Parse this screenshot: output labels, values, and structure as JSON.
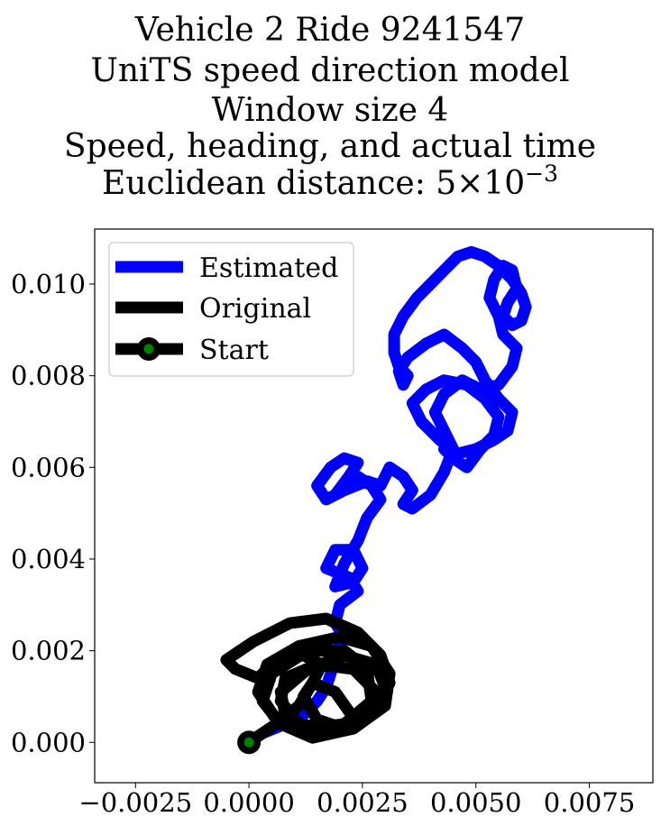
{
  "chart_data": {
    "type": "line",
    "title_lines": [
      "Vehicle 2 Ride 9241547",
      "UniTS speed direction model",
      "Window size 4",
      "Speed, heading, and actual time",
      "Euclidean distance: 5×10"
    ],
    "title_exponent": "−3",
    "xlim": [
      -0.0034,
      0.0089
    ],
    "ylim": [
      -0.00088,
      0.0112
    ],
    "x_ticks": [
      -0.0025,
      0.0,
      0.0025,
      0.005,
      0.0075
    ],
    "x_tick_labels": [
      "−0.0025",
      "0.0000",
      "0.0025",
      "0.0050",
      "0.0075"
    ],
    "y_ticks": [
      0.0,
      0.002,
      0.004,
      0.006,
      0.008,
      0.01
    ],
    "y_tick_labels": [
      "0.000",
      "0.002",
      "0.004",
      "0.006",
      "0.008",
      "0.010"
    ],
    "legend_position": "upper left",
    "legend": [
      "Estimated",
      "Original",
      "Start"
    ],
    "colors": {
      "estimated": "#0000ff",
      "original": "#000000",
      "start_fill": "#008000",
      "start_edge": "#000000"
    },
    "start": [
      0.0,
      0.0
    ],
    "series": [
      {
        "name": "Estimated",
        "x": [
          0.0,
          0.0003,
          0.0008,
          0.0012,
          0.0015,
          0.0017,
          0.0018,
          0.0019,
          0.0021,
          0.0019,
          0.002,
          0.0024,
          0.0022,
          0.0017,
          0.0019,
          0.0023,
          0.0025,
          0.0023,
          0.0019,
          0.0021,
          0.0024,
          0.0026,
          0.0029,
          0.0027,
          0.0024,
          0.0021,
          0.0019,
          0.0022,
          0.0024,
          0.0021,
          0.0018,
          0.0015,
          0.0017,
          0.0021,
          0.0026,
          0.0029,
          0.0031,
          0.0034,
          0.0036,
          0.0034,
          0.0036,
          0.004,
          0.0043,
          0.0045,
          0.0043,
          0.0041,
          0.0043,
          0.0047,
          0.0051,
          0.0055,
          0.0058,
          0.0059,
          0.0056,
          0.0055,
          0.0053,
          0.0054,
          0.0056,
          0.0058,
          0.0059,
          0.0057,
          0.0056,
          0.0058,
          0.006,
          0.0061,
          0.006,
          0.0058,
          0.0055,
          0.0052,
          0.0049,
          0.0046,
          0.0043,
          0.004,
          0.0037,
          0.0034,
          0.0032,
          0.0032,
          0.0033,
          0.0035,
          0.0034,
          0.0033,
          0.0035,
          0.0039,
          0.0043,
          0.0047,
          0.005,
          0.0052,
          0.0055,
          0.0058,
          0.0057,
          0.0054,
          0.005,
          0.0046,
          0.0042,
          0.0038,
          0.0036,
          0.0039,
          0.0043,
          0.0048,
          0.0052,
          0.0055,
          0.0054,
          0.0051,
          0.0048,
          0.0045,
          0.0043
        ],
        "y": [
          0.0,
          0.0002,
          0.0004,
          0.0006,
          0.0009,
          0.0012,
          0.0015,
          0.0019,
          0.0023,
          0.0026,
          0.003,
          0.0033,
          0.0036,
          0.0038,
          0.0042,
          0.0042,
          0.0038,
          0.0035,
          0.0034,
          0.0039,
          0.0044,
          0.0049,
          0.0053,
          0.0056,
          0.0058,
          0.0055,
          0.0054,
          0.0058,
          0.0061,
          0.0062,
          0.006,
          0.0056,
          0.0053,
          0.0055,
          0.0057,
          0.0056,
          0.006,
          0.0058,
          0.0055,
          0.0052,
          0.0051,
          0.0054,
          0.0059,
          0.0064,
          0.0068,
          0.0072,
          0.0076,
          0.0079,
          0.0077,
          0.0078,
          0.0082,
          0.0086,
          0.0089,
          0.0093,
          0.0097,
          0.0101,
          0.0104,
          0.0103,
          0.0099,
          0.0096,
          0.0093,
          0.0091,
          0.0092,
          0.0095,
          0.0098,
          0.0101,
          0.0104,
          0.0106,
          0.0107,
          0.0106,
          0.0103,
          0.01,
          0.0097,
          0.0093,
          0.0089,
          0.0085,
          0.0082,
          0.008,
          0.0078,
          0.0081,
          0.0084,
          0.0087,
          0.0089,
          0.0086,
          0.0083,
          0.0079,
          0.0075,
          0.0072,
          0.0068,
          0.0066,
          0.0064,
          0.0063,
          0.0066,
          0.007,
          0.0074,
          0.0077,
          0.0079,
          0.0078,
          0.0075,
          0.0071,
          0.0067,
          0.0064,
          0.006,
          0.0062,
          0.0064
        ]
      },
      {
        "name": "Original",
        "x": [
          0.0,
          0.0006,
          0.0011,
          0.0014,
          0.0016,
          0.0012,
          0.0006,
          0.0002,
          -0.0003,
          -0.0005,
          0.0001,
          0.0009,
          0.0017,
          0.0024,
          0.0029,
          0.0031,
          0.0028,
          0.0021,
          0.0013,
          0.0006,
          0.0002,
          0.0004,
          0.0011,
          0.002,
          0.0027,
          0.0031,
          0.003,
          0.0023,
          0.0014,
          0.0007,
          0.0003,
          0.0005,
          0.0013,
          0.0021,
          0.0026,
          0.0027,
          0.0021,
          0.0013,
          0.0008,
          0.0007,
          0.0013,
          0.0021,
          0.0028,
          0.003,
          0.0026,
          0.0018,
          0.0011,
          0.0007,
          0.0008,
          0.0015,
          0.0023,
          0.0028,
          0.0027,
          0.0021,
          0.0015,
          0.0012,
          0.0014,
          0.0019,
          0.0024
        ],
        "y": [
          0.0,
          0.0004,
          0.0008,
          0.0013,
          0.0017,
          0.0019,
          0.0018,
          0.0014,
          0.0016,
          0.0018,
          0.0022,
          0.0026,
          0.0027,
          0.0024,
          0.0019,
          0.0013,
          0.0007,
          0.0003,
          0.0002,
          0.0005,
          0.0011,
          0.0017,
          0.0021,
          0.0023,
          0.0021,
          0.0015,
          0.0008,
          0.0003,
          0.0001,
          0.0004,
          0.0009,
          0.0015,
          0.002,
          0.002,
          0.0016,
          0.0009,
          0.0004,
          0.0003,
          0.0006,
          0.0011,
          0.0016,
          0.0019,
          0.0017,
          0.0012,
          0.0006,
          0.0003,
          0.0004,
          0.0009,
          0.0014,
          0.0017,
          0.0016,
          0.0011,
          0.0006,
          0.0003,
          0.0005,
          0.001,
          0.0013,
          0.0011,
          0.0004
        ]
      }
    ]
  }
}
